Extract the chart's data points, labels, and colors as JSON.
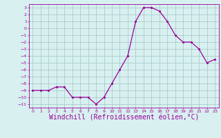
{
  "x": [
    0,
    1,
    2,
    3,
    4,
    5,
    6,
    7,
    8,
    9,
    10,
    11,
    12,
    13,
    14,
    15,
    16,
    17,
    18,
    19,
    20,
    21,
    22,
    23
  ],
  "y": [
    -9,
    -9,
    -9,
    -8.5,
    -8.5,
    -10,
    -10,
    -10,
    -11,
    -10,
    -8,
    -6,
    -4,
    1,
    3,
    3,
    2.5,
    1,
    -1,
    -2,
    -2,
    -3,
    -5,
    -4.5
  ],
  "line_color": "#990099",
  "marker": "s",
  "marker_size": 2,
  "bg_color": "#d8f0f0",
  "grid_color": "#aacccc",
  "xlabel": "Windchill (Refroidissement éolien,°C)",
  "xlabel_fontsize": 7,
  "xlim": [
    -0.5,
    23.5
  ],
  "ylim": [
    -11.5,
    3.5
  ],
  "xticks": [
    0,
    1,
    2,
    3,
    4,
    5,
    6,
    7,
    8,
    9,
    10,
    11,
    12,
    13,
    14,
    15,
    16,
    17,
    18,
    19,
    20,
    21,
    22,
    23
  ],
  "yticks": [
    3,
    2,
    1,
    0,
    -1,
    -2,
    -3,
    -4,
    -5,
    -6,
    -7,
    -8,
    -9,
    -10,
    -11
  ]
}
